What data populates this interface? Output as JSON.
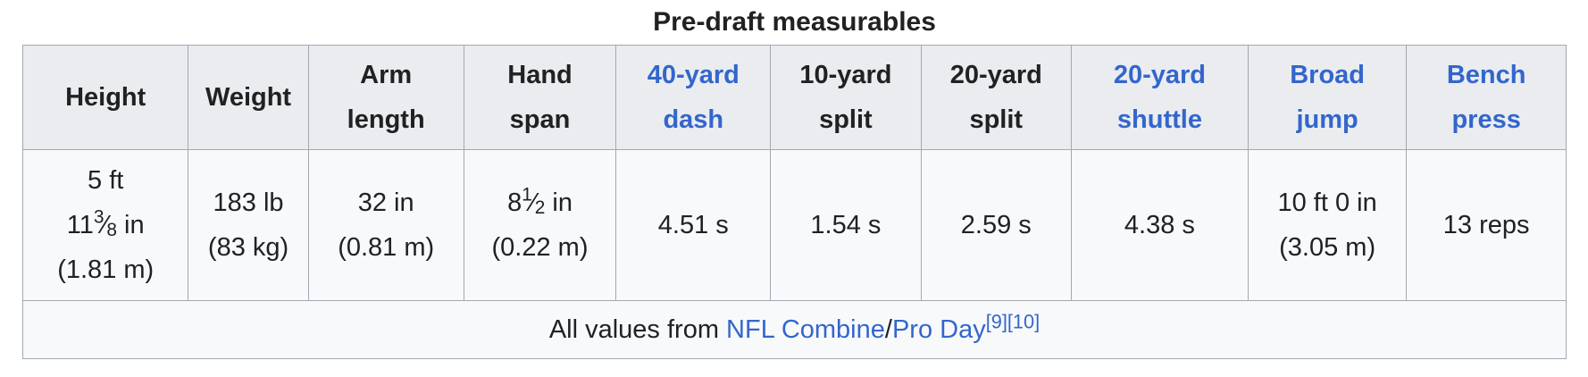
{
  "caption": "Pre-draft measurables",
  "headers": [
    {
      "line1": "Height",
      "line2": "",
      "link": false
    },
    {
      "line1": "Weight",
      "line2": "",
      "link": false
    },
    {
      "line1": "Arm",
      "line2": "length",
      "link": false
    },
    {
      "line1": "Hand",
      "line2": "span",
      "link": false
    },
    {
      "line1": "40-yard",
      "line2": "dash",
      "link": true
    },
    {
      "line1": "10-yard",
      "line2": "split",
      "link": false
    },
    {
      "line1": "20-yard",
      "line2": "split",
      "link": false
    },
    {
      "line1": "20-yard",
      "line2": "shuttle",
      "link": true
    },
    {
      "line1": "Broad",
      "line2": "jump",
      "link": true
    },
    {
      "line1": "Bench",
      "line2": "press",
      "link": true
    }
  ],
  "values": {
    "height": {
      "line1": "5 ft",
      "whole": "11",
      "frac_num": "3",
      "frac_den": "8",
      "unit": " in",
      "metric": "(1.81 m)"
    },
    "weight": {
      "line1": "183 lb",
      "line2": "(83 kg)"
    },
    "arm_length": {
      "line1": "32 in",
      "line2": "(0.81 m)"
    },
    "hand_span": {
      "whole": "8",
      "frac_num": "1",
      "frac_den": "2",
      "unit": " in",
      "metric": "(0.22 m)"
    },
    "forty_yard_dash": "4.51 s",
    "ten_yard_split": "1.54 s",
    "twenty_yard_split": "2.59 s",
    "twenty_yard_shuttle": "4.38 s",
    "broad_jump": {
      "line1": "10 ft 0 in",
      "line2": "(3.05 m)"
    },
    "bench_press": "13 reps"
  },
  "footer": {
    "prefix": "All values from ",
    "link1": "NFL Combine",
    "separator": "/",
    "link2": "Pro Day",
    "ref1": "[9]",
    "ref2": "[10]"
  },
  "colors": {
    "link": "#3366cc",
    "header_bg": "#eaecf0",
    "cell_bg": "#f8f9fa",
    "border": "#a2a9b1",
    "text": "#202122"
  }
}
